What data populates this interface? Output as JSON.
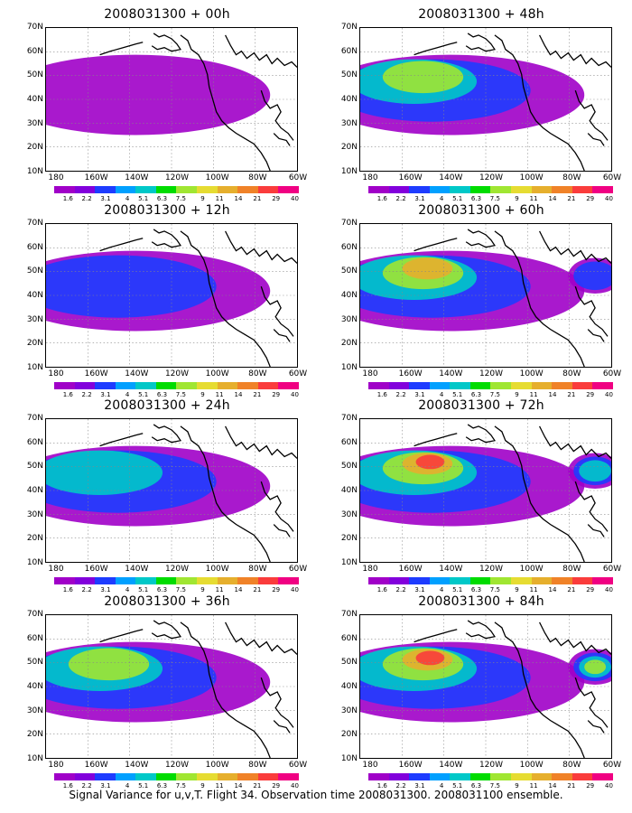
{
  "panels": [
    {
      "title": "2008031300 + 00h",
      "level": 1
    },
    {
      "title": "2008031300 + 48h",
      "level": 4
    },
    {
      "title": "2008031300 + 12h",
      "level": 2
    },
    {
      "title": "2008031300 + 60h",
      "level": 5
    },
    {
      "title": "2008031300 + 24h",
      "level": 3
    },
    {
      "title": "2008031300 + 72h",
      "level": 6
    },
    {
      "title": "2008031300 + 36h",
      "level": 4
    },
    {
      "title": "2008031300 + 84h",
      "level": 7
    }
  ],
  "axes": {
    "y_labels": [
      "70N",
      "60N",
      "50N",
      "40N",
      "30N",
      "20N",
      "10N"
    ],
    "x_labels": [
      "180",
      "160W",
      "140W",
      "120W",
      "100W",
      "80W",
      "60W"
    ]
  },
  "colorbar": {
    "labels": [
      "1.6",
      "2.2",
      "3.1",
      "4",
      "5.1",
      "6.3",
      "7.5",
      "9",
      "11",
      "14",
      "21",
      "29",
      "40"
    ],
    "colors": [
      "#a000c8",
      "#8200dc",
      "#1e3cff",
      "#00a0ff",
      "#00c8c8",
      "#00dc00",
      "#a0e632",
      "#e6dc32",
      "#e6af2d",
      "#f08228",
      "#fa3c3c",
      "#f00082"
    ]
  },
  "caption": "Signal Variance for u,v,T. Flight 34. Observation time 2008031300. 2008031100 ensemble."
}
